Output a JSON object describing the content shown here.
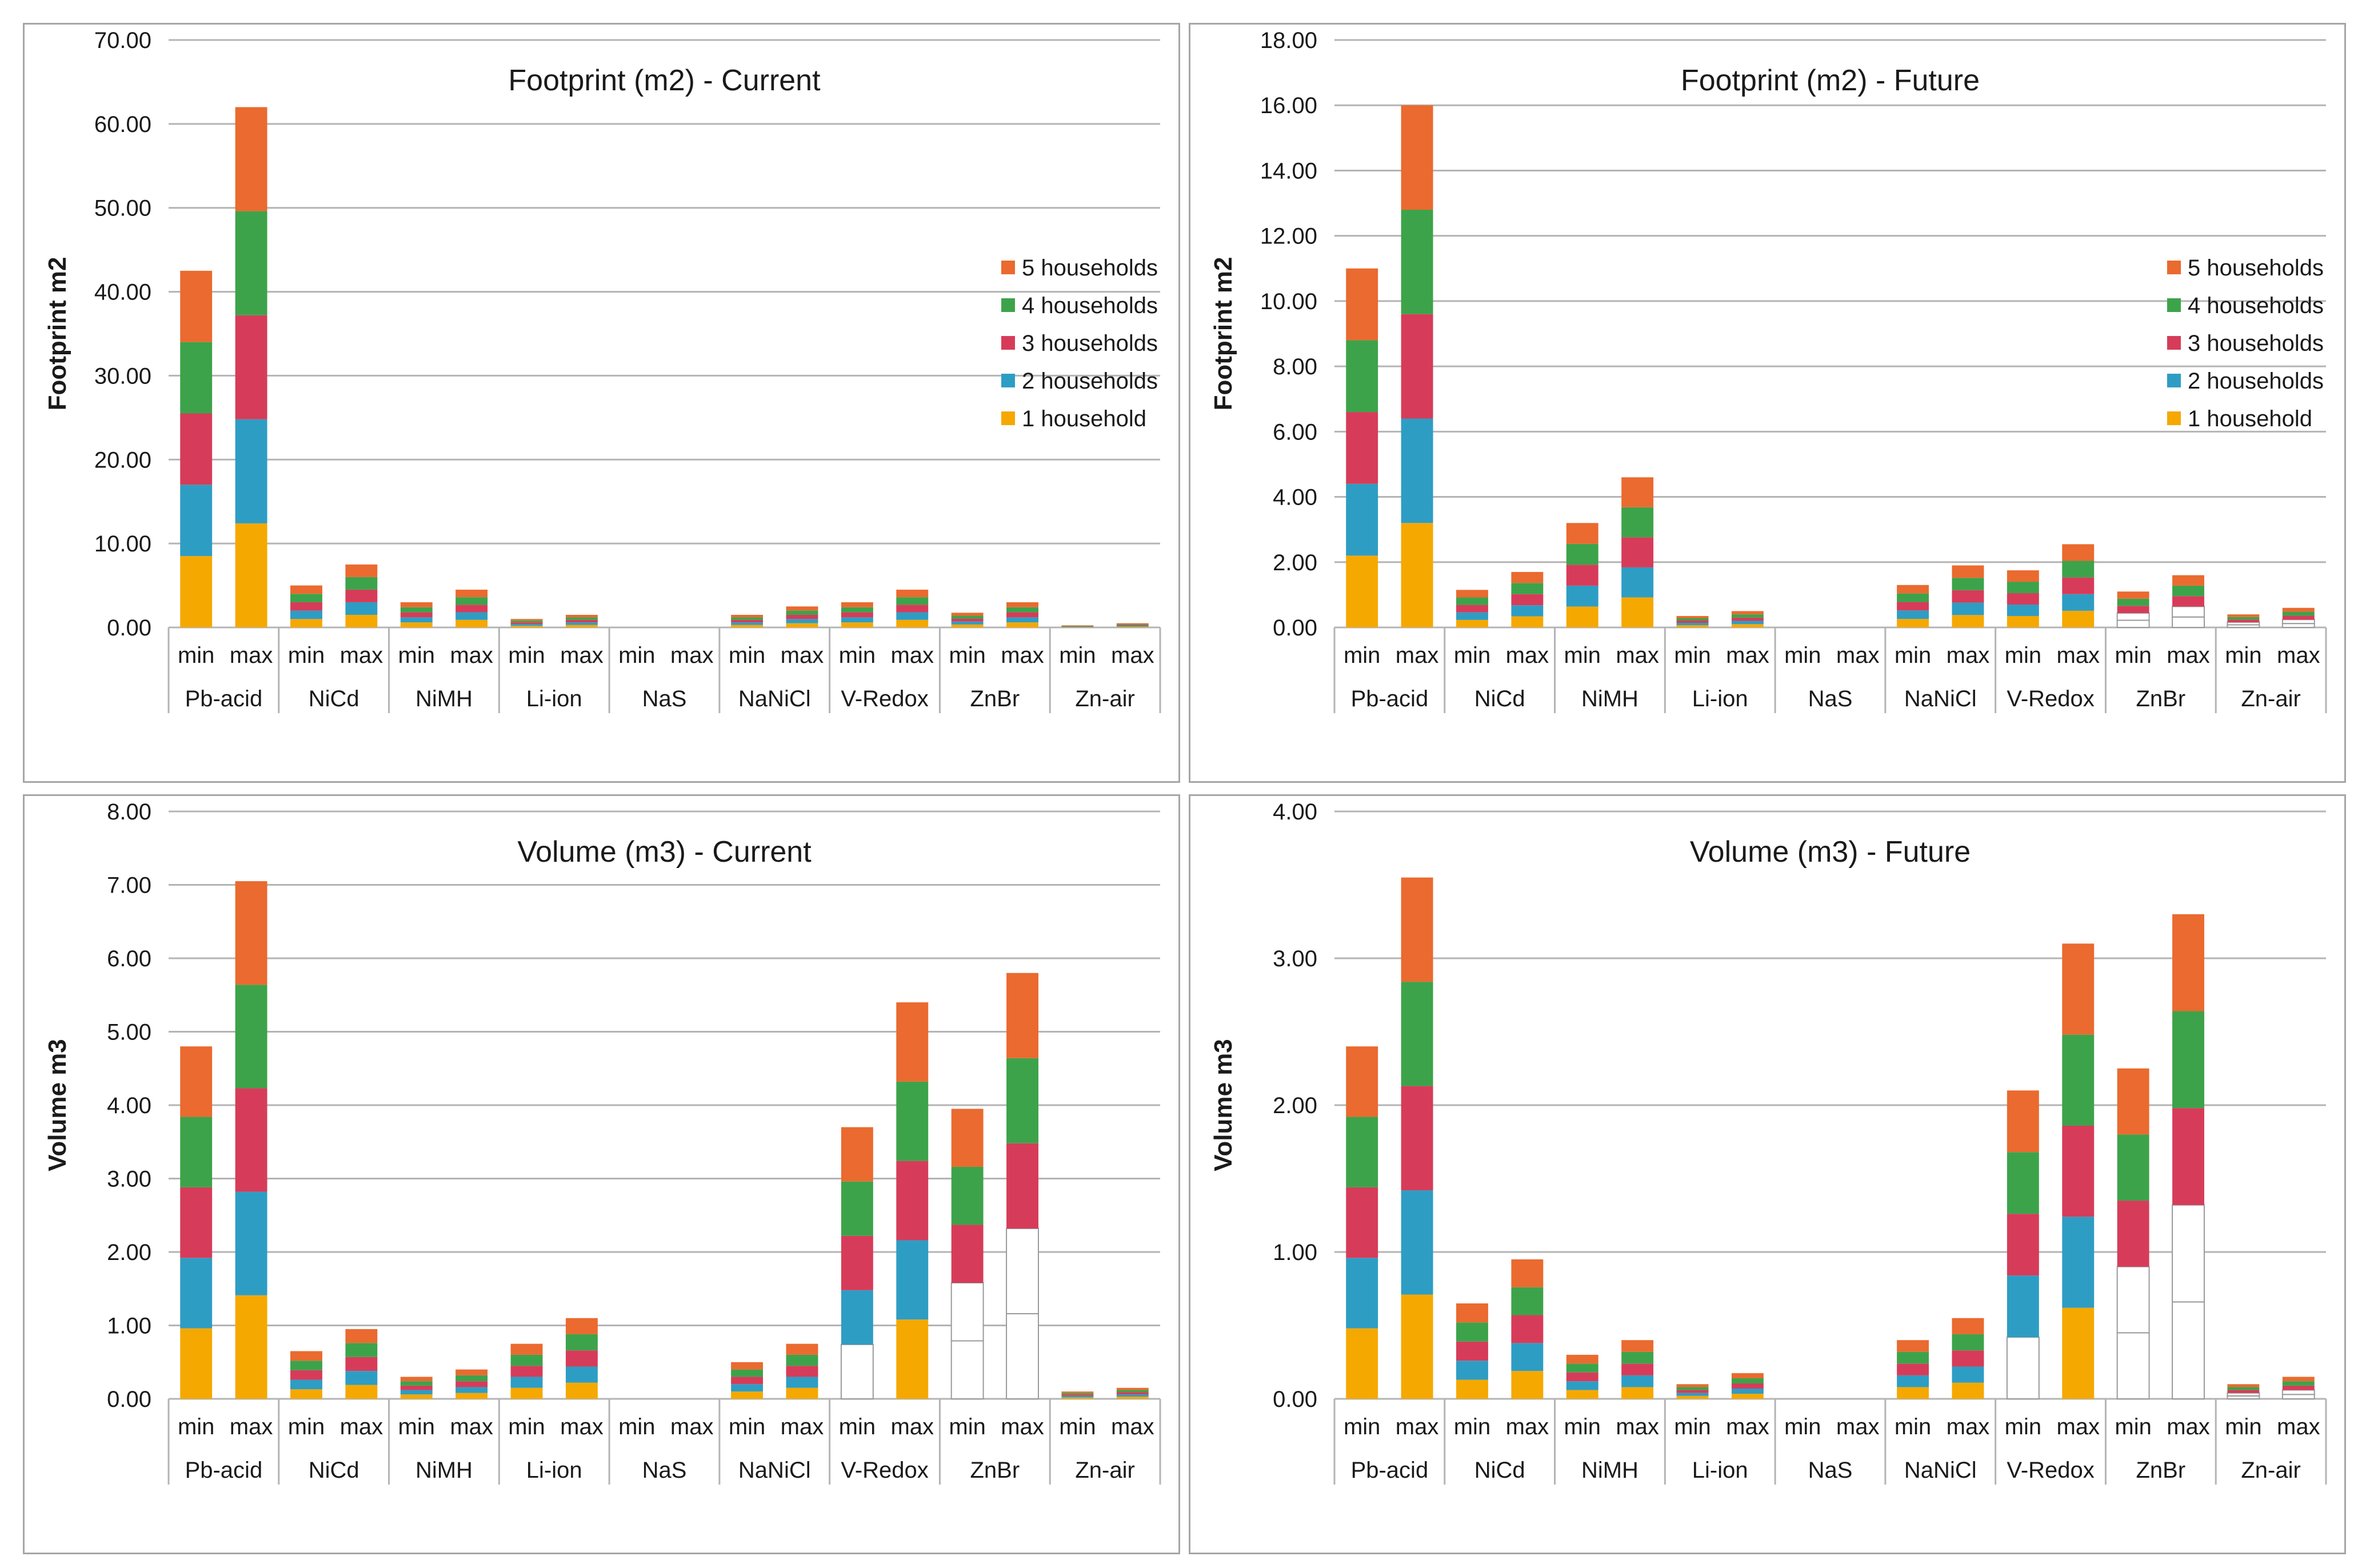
{
  "colors": {
    "1 household": "#f5a800",
    "2 households": "#2e9dc4",
    "3 households": "#d63c59",
    "4 households": "#3da34a",
    "5 households": "#ea6a2f",
    "outline": "#9a9a9a"
  },
  "chart_data": [
    {
      "type": "bar",
      "stacked": true,
      "title": "Footprint (m2) - Current",
      "ylabel": "Footprint m2",
      "ylim": [
        0,
        70
      ],
      "yticks": [
        0,
        10,
        20,
        30,
        40,
        50,
        60,
        70
      ],
      "legend_position": "right",
      "groups": [
        "Pb-acid",
        "NiCd",
        "NiMH",
        "Li-ion",
        "NaS",
        "NaNiCl",
        "V-Redox",
        "ZnBr",
        "Zn-air"
      ],
      "subcategories": [
        "min",
        "max"
      ],
      "series": [
        {
          "name": "1 household",
          "values": [
            8.5,
            12.4,
            1.0,
            1.5,
            0.6,
            0.9,
            0.2,
            0.3,
            0,
            0,
            0.3,
            0.5,
            0.6,
            0.9,
            0.35,
            0.6,
            0.05,
            0.1
          ]
        },
        {
          "name": "2 households",
          "values": [
            8.5,
            12.4,
            1.0,
            1.5,
            0.6,
            0.9,
            0.2,
            0.3,
            0,
            0,
            0.3,
            0.5,
            0.6,
            0.9,
            0.35,
            0.6,
            0.05,
            0.1
          ]
        },
        {
          "name": "3 households",
          "values": [
            8.5,
            12.4,
            1.0,
            1.5,
            0.6,
            0.9,
            0.2,
            0.3,
            0,
            0,
            0.3,
            0.5,
            0.6,
            0.9,
            0.35,
            0.6,
            0.05,
            0.1
          ]
        },
        {
          "name": "4 households",
          "values": [
            8.5,
            12.4,
            1.0,
            1.5,
            0.6,
            0.9,
            0.2,
            0.3,
            0,
            0,
            0.3,
            0.5,
            0.6,
            0.9,
            0.35,
            0.6,
            0.05,
            0.1
          ]
        },
        {
          "name": "5 households",
          "values": [
            8.5,
            12.4,
            1.0,
            1.5,
            0.6,
            0.9,
            0.2,
            0.3,
            0,
            0,
            0.3,
            0.5,
            0.6,
            0.9,
            0.35,
            0.6,
            0.05,
            0.1
          ]
        }
      ],
      "outline_only": {
        "1 household": [],
        "2 households": []
      }
    },
    {
      "type": "bar",
      "stacked": true,
      "title": "Footprint (m2) - Future",
      "ylabel": "Footprint m2",
      "ylim": [
        0,
        18
      ],
      "yticks": [
        0,
        2,
        4,
        6,
        8,
        10,
        12,
        14,
        16,
        18
      ],
      "legend_position": "right",
      "groups": [
        "Pb-acid",
        "NiCd",
        "NiMH",
        "Li-ion",
        "NaS",
        "NaNiCl",
        "V-Redox",
        "ZnBr",
        "Zn-air"
      ],
      "subcategories": [
        "min",
        "max"
      ],
      "series": [
        {
          "name": "1 household",
          "values": [
            2.2,
            3.2,
            0.23,
            0.34,
            0.64,
            0.92,
            0.07,
            0.1,
            0,
            0,
            0.26,
            0.38,
            0.35,
            0.51,
            0.22,
            0.32,
            0.08,
            0.12
          ]
        },
        {
          "name": "2 households",
          "values": [
            2.2,
            3.2,
            0.23,
            0.34,
            0.64,
            0.92,
            0.07,
            0.1,
            0,
            0,
            0.26,
            0.38,
            0.35,
            0.51,
            0.22,
            0.32,
            0.08,
            0.12
          ]
        },
        {
          "name": "3 households",
          "values": [
            2.2,
            3.2,
            0.23,
            0.34,
            0.64,
            0.92,
            0.07,
            0.1,
            0,
            0,
            0.26,
            0.38,
            0.35,
            0.51,
            0.22,
            0.32,
            0.08,
            0.12
          ]
        },
        {
          "name": "4 households",
          "values": [
            2.2,
            3.2,
            0.23,
            0.34,
            0.64,
            0.92,
            0.07,
            0.1,
            0,
            0,
            0.26,
            0.38,
            0.35,
            0.51,
            0.22,
            0.32,
            0.08,
            0.12
          ]
        },
        {
          "name": "5 households",
          "values": [
            2.2,
            3.2,
            0.23,
            0.34,
            0.64,
            0.92,
            0.07,
            0.1,
            0,
            0,
            0.26,
            0.38,
            0.35,
            0.51,
            0.22,
            0.32,
            0.08,
            0.12
          ]
        }
      ],
      "outline_only": {
        "1 household": [
          14,
          15,
          16,
          17
        ],
        "2 households": [
          14,
          15,
          16,
          17
        ]
      }
    },
    {
      "type": "bar",
      "stacked": true,
      "title": "Volume (m3) - Current",
      "ylabel": "Volume m3",
      "ylim": [
        0,
        8
      ],
      "yticks": [
        0,
        1,
        2,
        3,
        4,
        5,
        6,
        7,
        8
      ],
      "legend_position": "none",
      "groups": [
        "Pb-acid",
        "NiCd",
        "NiMH",
        "Li-ion",
        "NaS",
        "NaNiCl",
        "V-Redox",
        "ZnBr",
        "Zn-air"
      ],
      "subcategories": [
        "min",
        "max"
      ],
      "series": [
        {
          "name": "1 household",
          "values": [
            0.96,
            1.41,
            0.13,
            0.19,
            0.06,
            0.08,
            0.15,
            0.22,
            0,
            0,
            0.1,
            0.15,
            0.74,
            1.08,
            0.79,
            1.16,
            0.02,
            0.03
          ]
        },
        {
          "name": "2 households",
          "values": [
            0.96,
            1.41,
            0.13,
            0.19,
            0.06,
            0.08,
            0.15,
            0.22,
            0,
            0,
            0.1,
            0.15,
            0.74,
            1.08,
            0.79,
            1.16,
            0.02,
            0.03
          ]
        },
        {
          "name": "3 households",
          "values": [
            0.96,
            1.41,
            0.13,
            0.19,
            0.06,
            0.08,
            0.15,
            0.22,
            0,
            0,
            0.1,
            0.15,
            0.74,
            1.08,
            0.79,
            1.16,
            0.02,
            0.03
          ]
        },
        {
          "name": "4 households",
          "values": [
            0.96,
            1.41,
            0.13,
            0.19,
            0.06,
            0.08,
            0.15,
            0.22,
            0,
            0,
            0.1,
            0.15,
            0.74,
            1.08,
            0.79,
            1.16,
            0.02,
            0.03
          ]
        },
        {
          "name": "5 households",
          "values": [
            0.96,
            1.41,
            0.13,
            0.19,
            0.06,
            0.08,
            0.15,
            0.22,
            0,
            0,
            0.1,
            0.15,
            0.74,
            1.08,
            0.79,
            1.16,
            0.02,
            0.03
          ]
        }
      ],
      "outline_only": {
        "1 household": [
          12,
          14,
          15
        ],
        "2 households": [
          14,
          15
        ]
      }
    },
    {
      "type": "bar",
      "stacked": true,
      "title": "Volume (m3) - Future",
      "ylabel": "Volume m3",
      "ylim": [
        0,
        4
      ],
      "yticks": [
        0,
        1,
        2,
        3,
        4
      ],
      "legend_position": "none",
      "groups": [
        "Pb-acid",
        "NiCd",
        "NiMH",
        "Li-ion",
        "NaS",
        "NaNiCl",
        "V-Redox",
        "ZnBr",
        "Zn-air"
      ],
      "subcategories": [
        "min",
        "max"
      ],
      "series": [
        {
          "name": "1 household",
          "values": [
            0.48,
            0.71,
            0.13,
            0.19,
            0.06,
            0.08,
            0.02,
            0.035,
            0,
            0,
            0.08,
            0.11,
            0.42,
            0.62,
            0.45,
            0.66,
            0.02,
            0.03
          ]
        },
        {
          "name": "2 households",
          "values": [
            0.48,
            0.71,
            0.13,
            0.19,
            0.06,
            0.08,
            0.02,
            0.035,
            0,
            0,
            0.08,
            0.11,
            0.42,
            0.62,
            0.45,
            0.66,
            0.02,
            0.03
          ]
        },
        {
          "name": "3 households",
          "values": [
            0.48,
            0.71,
            0.13,
            0.19,
            0.06,
            0.08,
            0.02,
            0.035,
            0,
            0,
            0.08,
            0.11,
            0.42,
            0.62,
            0.45,
            0.66,
            0.02,
            0.03
          ]
        },
        {
          "name": "4 households",
          "values": [
            0.48,
            0.71,
            0.13,
            0.19,
            0.06,
            0.08,
            0.02,
            0.035,
            0,
            0,
            0.08,
            0.11,
            0.42,
            0.62,
            0.45,
            0.66,
            0.02,
            0.03
          ]
        },
        {
          "name": "5 households",
          "values": [
            0.48,
            0.71,
            0.13,
            0.19,
            0.06,
            0.08,
            0.02,
            0.035,
            0,
            0,
            0.08,
            0.11,
            0.42,
            0.62,
            0.45,
            0.66,
            0.02,
            0.03
          ]
        }
      ],
      "outline_only": {
        "1 household": [
          12,
          14,
          15,
          16,
          17
        ],
        "2 households": [
          14,
          15,
          16,
          17
        ]
      }
    }
  ]
}
